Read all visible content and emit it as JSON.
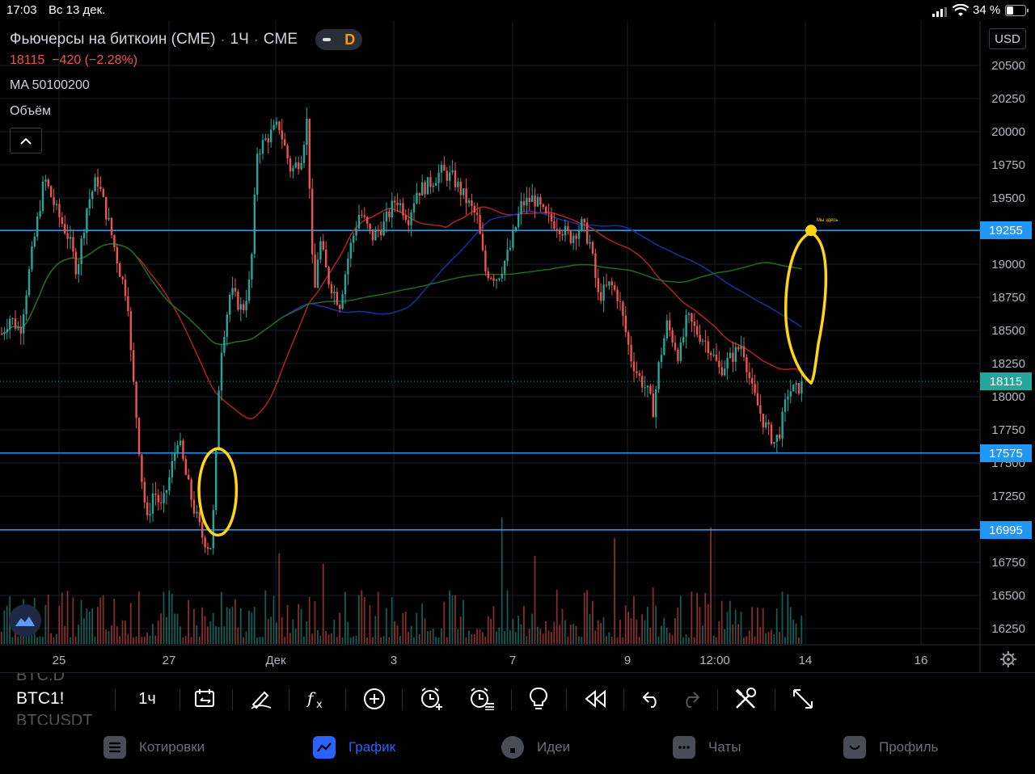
{
  "status_bar": {
    "time": "17:03",
    "date": "Вс 13 дек.",
    "battery": "34 %"
  },
  "header": {
    "title": "Фьючерсы на биткоин (CME)",
    "sep1": "·",
    "interval": "1Ч",
    "sep2": "·",
    "exchange": "CME",
    "badge": "D",
    "price_line": "18115  −420 (−2.28%)",
    "ma_label": "MA 50100200",
    "volume_label": "Объём"
  },
  "currency": "USD",
  "chart_data": {
    "type": "candlestick",
    "title": "Фьючерсы на биткоин (CME) · 1Ч · CME",
    "ylabel": "USD",
    "ylim": [
      16090,
      20690
    ],
    "y_ticks": [
      20500,
      20250,
      20000,
      19750,
      19500,
      19250,
      19000,
      18750,
      18500,
      18250,
      18000,
      17750,
      17500,
      17250,
      17000,
      16750,
      16500,
      16250
    ],
    "x_ticks": [
      "25",
      "27",
      "Дек",
      "3",
      "7",
      "9",
      "12:00",
      "14",
      "16"
    ],
    "last_price": 18115,
    "horizontal_lines": [
      19255,
      17575,
      16995
    ],
    "annotation": "Мы здесь",
    "series": [
      {
        "name": "MA 50",
        "color": "#b22222"
      },
      {
        "name": "MA 100",
        "color": "#1c2f9e"
      },
      {
        "name": "MA 200",
        "color": "#1f6b1f"
      }
    ],
    "approx_price_path": [
      [
        0,
        18450
      ],
      [
        12,
        18600
      ],
      [
        25,
        18500
      ],
      [
        40,
        19100
      ],
      [
        55,
        19650
      ],
      [
        70,
        19400
      ],
      [
        85,
        19200
      ],
      [
        95,
        18950
      ],
      [
        108,
        19450
      ],
      [
        120,
        19650
      ],
      [
        135,
        19300
      ],
      [
        150,
        18900
      ],
      [
        158,
        18750
      ],
      [
        162,
        18300
      ],
      [
        168,
        17900
      ],
      [
        175,
        17400
      ],
      [
        182,
        17050
      ],
      [
        190,
        17300
      ],
      [
        200,
        17150
      ],
      [
        210,
        17400
      ],
      [
        220,
        17700
      ],
      [
        230,
        17400
      ],
      [
        240,
        17150
      ],
      [
        250,
        16950
      ],
      [
        260,
        16850
      ],
      [
        265,
        17200
      ],
      [
        272,
        18300
      ],
      [
        285,
        18800
      ],
      [
        300,
        18650
      ],
      [
        310,
        18900
      ],
      [
        318,
        19850
      ],
      [
        330,
        19950
      ],
      [
        345,
        20050
      ],
      [
        360,
        19700
      ],
      [
        372,
        19800
      ],
      [
        380,
        20100
      ],
      [
        388,
        18700
      ],
      [
        395,
        19200
      ],
      [
        405,
        18900
      ],
      [
        420,
        18700
      ],
      [
        432,
        19100
      ],
      [
        445,
        19400
      ],
      [
        460,
        19200
      ],
      [
        475,
        19300
      ],
      [
        490,
        19500
      ],
      [
        505,
        19350
      ],
      [
        515,
        19550
      ],
      [
        530,
        19600
      ],
      [
        545,
        19700
      ],
      [
        560,
        19650
      ],
      [
        575,
        19500
      ],
      [
        590,
        19350
      ],
      [
        600,
        18950
      ],
      [
        615,
        18900
      ],
      [
        630,
        19100
      ],
      [
        645,
        19450
      ],
      [
        660,
        19500
      ],
      [
        675,
        19350
      ],
      [
        690,
        19300
      ],
      [
        705,
        19200
      ],
      [
        720,
        19300
      ],
      [
        730,
        19150
      ],
      [
        740,
        18750
      ],
      [
        755,
        18850
      ],
      [
        765,
        18750
      ],
      [
        780,
        18300
      ],
      [
        790,
        18150
      ],
      [
        800,
        18050
      ],
      [
        808,
        17900
      ],
      [
        815,
        18250
      ],
      [
        825,
        18550
      ],
      [
        840,
        18300
      ],
      [
        850,
        18600
      ],
      [
        860,
        18500
      ],
      [
        875,
        18400
      ],
      [
        890,
        18200
      ],
      [
        905,
        18300
      ],
      [
        918,
        18400
      ],
      [
        930,
        18050
      ],
      [
        945,
        17800
      ],
      [
        958,
        17650
      ],
      [
        965,
        17750
      ],
      [
        975,
        18050
      ],
      [
        985,
        18050
      ],
      [
        994,
        18115
      ]
    ]
  },
  "price_tags": {
    "h1": "19255",
    "last": "18115",
    "h2": "17575",
    "h3": "16995"
  },
  "toolbar": {
    "symbol_prev": "BTC.D",
    "symbol": "BTC1!",
    "symbol_next": "BTCUSDT",
    "interval": "1ч"
  },
  "nav": {
    "quotes": "Котировки",
    "chart": "График",
    "ideas": "Идеи",
    "chats": "Чаты",
    "profile": "Профиль"
  },
  "colors": {
    "up": "#26a69a",
    "down": "#ef5350",
    "hline": "#2196f3",
    "accent": "#2962ff",
    "marker": "#ffd515"
  }
}
